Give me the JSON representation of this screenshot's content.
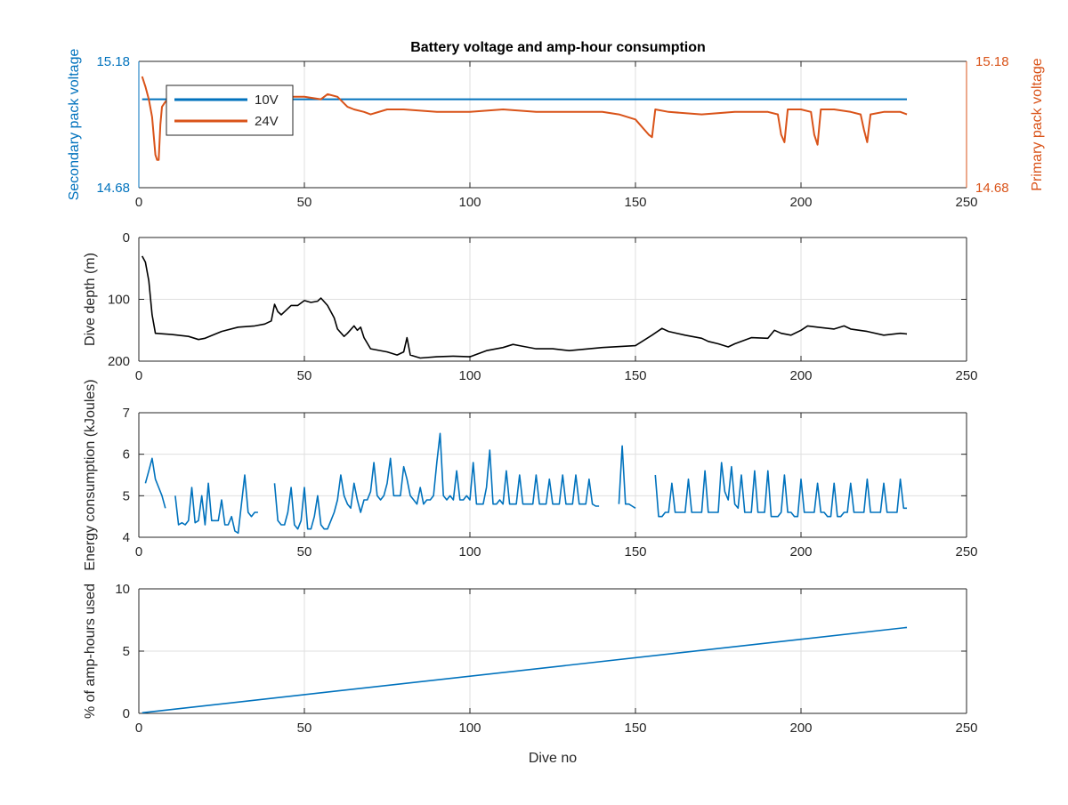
{
  "colors": {
    "blue": "#0072bd",
    "orange": "#d95319",
    "black": "#000000",
    "grid": "#dfdfdf",
    "axis": "#262626"
  },
  "chart_data": [
    {
      "type": "line",
      "title": "Battery voltage and amp-hour consumption",
      "ylabel": "Secondary pack voltage",
      "ylabel_right": "Primary pack voltage",
      "xlim": [
        0,
        250
      ],
      "ylim": [
        14.68,
        15.18
      ],
      "ylim_right": [
        14.68,
        15.18
      ],
      "xticks": [
        0,
        50,
        100,
        150,
        200,
        250
      ],
      "yticks": [
        14.68,
        15.18
      ],
      "yticks_right": [
        14.68,
        15.18
      ],
      "grid": true,
      "legend": "top-left",
      "series": [
        {
          "name": "10V",
          "axis": "left",
          "x": [
            1,
            232
          ],
          "y": [
            15.03,
            15.03
          ]
        },
        {
          "name": "24V",
          "axis": "right",
          "x": [
            1,
            2,
            3,
            4,
            5,
            5.5,
            6,
            6.5,
            7,
            8,
            9,
            10,
            20,
            30,
            40,
            45,
            50,
            55,
            57,
            60,
            63,
            65,
            68,
            70,
            75,
            80,
            90,
            100,
            110,
            120,
            130,
            140,
            145,
            150,
            152,
            154,
            155,
            156,
            160,
            170,
            180,
            190,
            193,
            194,
            195,
            196,
            198,
            200,
            203,
            204,
            205,
            206,
            210,
            215,
            218,
            219,
            220,
            221,
            225,
            230,
            232
          ],
          "y": [
            15.12,
            15.08,
            15.03,
            14.96,
            14.81,
            14.79,
            14.79,
            14.93,
            15.0,
            15.02,
            15.03,
            15.02,
            15.02,
            15.03,
            15.03,
            15.04,
            15.04,
            15.03,
            15.05,
            15.04,
            15.0,
            14.99,
            14.98,
            14.97,
            14.99,
            14.99,
            14.98,
            14.98,
            14.99,
            14.98,
            14.98,
            14.98,
            14.97,
            14.95,
            14.92,
            14.89,
            14.88,
            14.99,
            14.98,
            14.97,
            14.98,
            14.98,
            14.97,
            14.89,
            14.86,
            14.99,
            14.99,
            14.99,
            14.98,
            14.89,
            14.85,
            14.99,
            14.99,
            14.98,
            14.97,
            14.91,
            14.86,
            14.97,
            14.98,
            14.98,
            14.97
          ]
        }
      ]
    },
    {
      "type": "line",
      "title": "",
      "ylabel": "Dive depth (m)",
      "xlim": [
        0,
        250
      ],
      "ylim": [
        0,
        200
      ],
      "y_reversed": true,
      "xticks": [
        0,
        50,
        100,
        150,
        200,
        250
      ],
      "yticks": [
        0,
        100,
        200
      ],
      "grid": true,
      "series": [
        {
          "name": "",
          "x": [
            1,
            2,
            3,
            4,
            5,
            10,
            15,
            18,
            20,
            25,
            30,
            35,
            38,
            40,
            41,
            42,
            43,
            45,
            46,
            48,
            50,
            52,
            54,
            55,
            57,
            59,
            60,
            62,
            63,
            65,
            66,
            67,
            68,
            70,
            75,
            78,
            80,
            81,
            82,
            85,
            90,
            95,
            100,
            105,
            110,
            113,
            115,
            120,
            125,
            130,
            140,
            150,
            155,
            158,
            160,
            165,
            170,
            172,
            175,
            178,
            180,
            185,
            190,
            192,
            194,
            197,
            200,
            202,
            205,
            210,
            213,
            215,
            220,
            225,
            230,
            232
          ],
          "y": [
            30,
            40,
            70,
            125,
            155,
            157,
            160,
            165,
            163,
            152,
            145,
            143,
            140,
            135,
            108,
            120,
            125,
            115,
            110,
            110,
            102,
            105,
            103,
            98,
            110,
            130,
            148,
            160,
            155,
            143,
            150,
            145,
            162,
            180,
            185,
            190,
            185,
            162,
            190,
            195,
            193,
            192,
            193,
            183,
            178,
            173,
            175,
            180,
            180,
            183,
            178,
            175,
            158,
            147,
            152,
            158,
            163,
            168,
            172,
            177,
            172,
            162,
            163,
            150,
            155,
            158,
            150,
            143,
            145,
            148,
            143,
            148,
            152,
            158,
            155,
            156
          ]
        }
      ]
    },
    {
      "type": "line",
      "title": "",
      "ylabel": "Energy consumption (kJoules)",
      "xlim": [
        0,
        250
      ],
      "ylim": [
        4,
        7
      ],
      "xticks": [
        0,
        50,
        100,
        150,
        200,
        250
      ],
      "yticks": [
        4,
        5,
        6,
        7
      ],
      "grid": true,
      "series": [
        {
          "name": "",
          "segments": [
            {
              "x": [
                2,
                3,
                4,
                5,
                6,
                7,
                8
              ],
              "y": [
                5.3,
                5.6,
                5.9,
                5.4,
                5.2,
                5.0,
                4.7
              ]
            },
            {
              "x": [
                11,
                12,
                13,
                14,
                15,
                16,
                17,
                18,
                19,
                20,
                21,
                22,
                23,
                24,
                25,
                26,
                27,
                28,
                29,
                30,
                31,
                32,
                33,
                34,
                35,
                36
              ],
              "y": [
                5.0,
                4.3,
                4.35,
                4.3,
                4.4,
                5.2,
                4.35,
                4.4,
                5.0,
                4.3,
                5.3,
                4.4,
                4.4,
                4.4,
                4.9,
                4.3,
                4.3,
                4.5,
                4.15,
                4.1,
                4.8,
                5.5,
                4.6,
                4.5,
                4.6,
                4.6
              ]
            },
            {
              "x": [
                41,
                42,
                43,
                44,
                45,
                46,
                47,
                48,
                49,
                50,
                51,
                52,
                53,
                54,
                55,
                56,
                57,
                58,
                59,
                60,
                61,
                62,
                63,
                64,
                65,
                66,
                67,
                68,
                69,
                70,
                71,
                72,
                73,
                74,
                75,
                76,
                77,
                78,
                79,
                80,
                81,
                82,
                83,
                84,
                85,
                86,
                87,
                88,
                89,
                90,
                91,
                92,
                93,
                94,
                95,
                96,
                97,
                98,
                99,
                100,
                101,
                102,
                103,
                104,
                105,
                106,
                107,
                108,
                109,
                110,
                111,
                112,
                113,
                114,
                115,
                116,
                117,
                118,
                119,
                120,
                121,
                122,
                123,
                124,
                125,
                126,
                127,
                128,
                129,
                130,
                131,
                132,
                133,
                134,
                135,
                136,
                137,
                138,
                139
              ],
              "y": [
                5.3,
                4.4,
                4.3,
                4.3,
                4.6,
                5.2,
                4.3,
                4.2,
                4.4,
                5.2,
                4.2,
                4.2,
                4.5,
                5.0,
                4.3,
                4.2,
                4.2,
                4.4,
                4.6,
                4.9,
                5.5,
                5.0,
                4.8,
                4.7,
                5.3,
                4.9,
                4.6,
                4.9,
                4.9,
                5.1,
                5.8,
                5.0,
                4.9,
                5.0,
                5.3,
                5.9,
                5.0,
                5.0,
                5.0,
                5.7,
                5.4,
                5.0,
                4.9,
                4.8,
                5.2,
                4.8,
                4.9,
                4.9,
                5.0,
                5.8,
                6.5,
                5.0,
                4.9,
                5.0,
                4.9,
                5.6,
                4.9,
                4.9,
                5.0,
                4.9,
                5.8,
                4.8,
                4.8,
                4.8,
                5.2,
                6.1,
                4.8,
                4.8,
                4.9,
                4.8,
                5.6,
                4.8,
                4.8,
                4.8,
                5.5,
                4.8,
                4.8,
                4.8,
                4.8,
                5.5,
                4.8,
                4.8,
                4.8,
                5.4,
                4.8,
                4.8,
                4.8,
                5.5,
                4.8,
                4.8,
                4.8,
                5.5,
                4.8,
                4.8,
                4.8,
                5.4,
                4.8,
                4.75,
                4.75
              ]
            },
            {
              "x": [
                145,
                146,
                147,
                148,
                149,
                150
              ],
              "y": [
                4.8,
                6.2,
                4.8,
                4.8,
                4.75,
                4.7
              ]
            },
            {
              "x": [
                156,
                157,
                158,
                159,
                160,
                161,
                162,
                163,
                164,
                165,
                166,
                167,
                168,
                169,
                170,
                171,
                172,
                173,
                174,
                175,
                176,
                177,
                178,
                179,
                180,
                181,
                182,
                183,
                184,
                185,
                186,
                187,
                188,
                189,
                190,
                191,
                192,
                193,
                194,
                195,
                196,
                197,
                198,
                199,
                200,
                201,
                202,
                203,
                204,
                205,
                206,
                207,
                208,
                209,
                210,
                211,
                212,
                213,
                214,
                215,
                216,
                217,
                218,
                219,
                220,
                221,
                222,
                223,
                224,
                225,
                226,
                227,
                228,
                229,
                230,
                231,
                232
              ],
              "y": [
                5.5,
                4.5,
                4.5,
                4.6,
                4.6,
                5.3,
                4.6,
                4.6,
                4.6,
                4.6,
                5.4,
                4.6,
                4.6,
                4.6,
                4.6,
                5.6,
                4.6,
                4.6,
                4.6,
                4.6,
                5.8,
                5.1,
                4.9,
                5.7,
                4.8,
                4.7,
                5.5,
                4.6,
                4.6,
                4.6,
                5.6,
                4.6,
                4.6,
                4.6,
                5.6,
                4.5,
                4.5,
                4.5,
                4.6,
                5.5,
                4.6,
                4.6,
                4.5,
                4.5,
                5.4,
                4.6,
                4.6,
                4.6,
                4.6,
                5.3,
                4.6,
                4.6,
                4.5,
                4.5,
                5.3,
                4.5,
                4.5,
                4.6,
                4.6,
                5.3,
                4.6,
                4.6,
                4.6,
                4.6,
                5.4,
                4.6,
                4.6,
                4.6,
                4.6,
                5.3,
                4.6,
                4.6,
                4.6,
                4.6,
                5.4,
                4.7,
                4.7
              ]
            }
          ]
        }
      ]
    },
    {
      "type": "line",
      "title": "",
      "xlabel": "Dive no",
      "ylabel": "% of amp-hours used",
      "xlim": [
        0,
        250
      ],
      "ylim": [
        0,
        10
      ],
      "xticks": [
        0,
        50,
        100,
        150,
        200,
        250
      ],
      "yticks": [
        0,
        5,
        10
      ],
      "grid": true,
      "series": [
        {
          "name": "",
          "x": [
            1,
            232
          ],
          "y": [
            0.05,
            6.9
          ]
        }
      ]
    }
  ]
}
